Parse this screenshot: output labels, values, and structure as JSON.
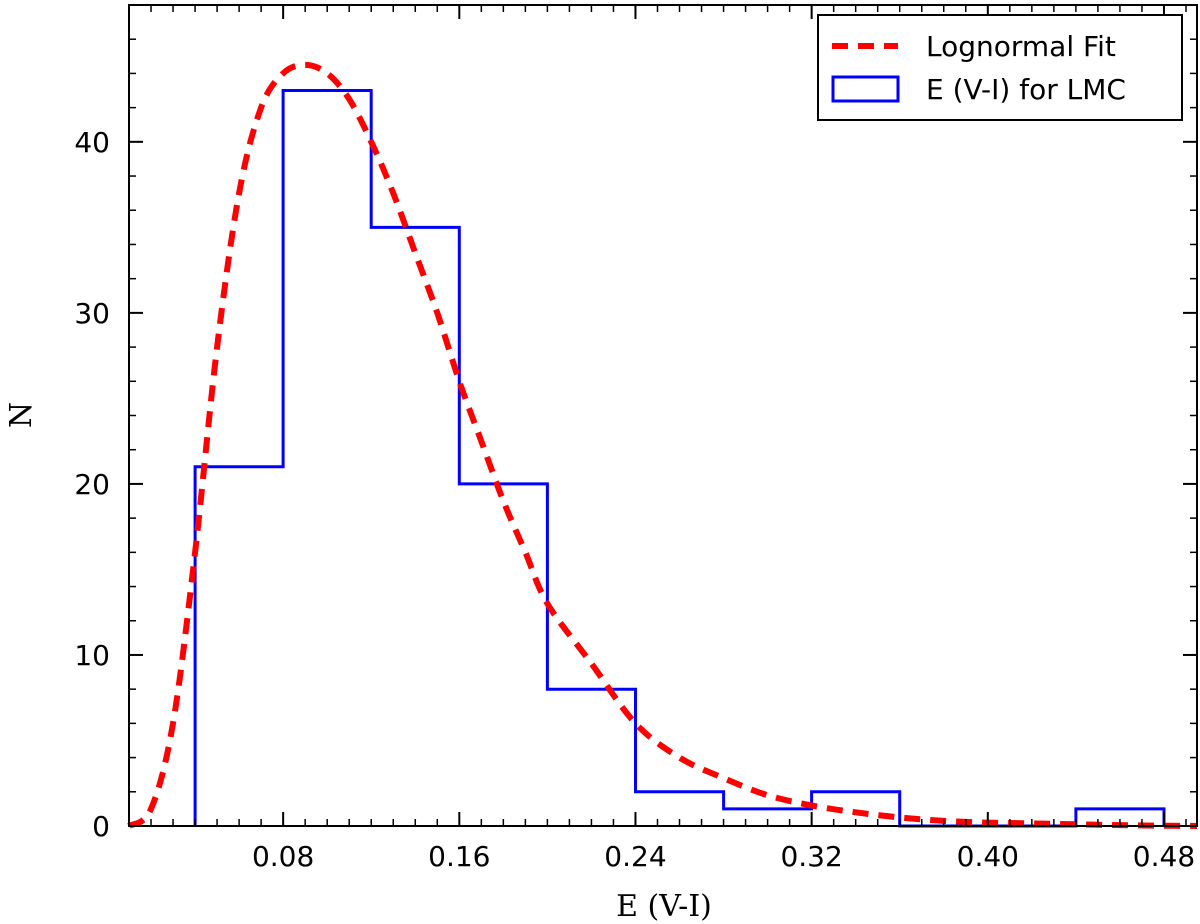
{
  "chart_data": {
    "type": "bar",
    "xlabel": "E (V-I)",
    "ylabel": "N",
    "xlim": [
      0.01,
      0.495
    ],
    "ylim": [
      0,
      48
    ],
    "x_ticks": [
      0.08,
      0.16,
      0.24,
      0.32,
      0.4,
      0.48
    ],
    "x_tick_labels": [
      "0.08",
      "0.16",
      "0.24",
      "0.32",
      "0.40",
      "0.48"
    ],
    "y_ticks": [
      0,
      10,
      20,
      30,
      40
    ],
    "y_tick_labels": [
      "0",
      "10",
      "20",
      "30",
      "40"
    ],
    "grid": false,
    "legend_position": "top-right",
    "series": [
      {
        "name": "Lognormal Fit",
        "kind": "line",
        "style": "dashed",
        "color": "#ff0000",
        "x": [
          0.01,
          0.02,
          0.03,
          0.04,
          0.05,
          0.06,
          0.07,
          0.08,
          0.09,
          0.1,
          0.11,
          0.12,
          0.13,
          0.14,
          0.15,
          0.16,
          0.17,
          0.18,
          0.19,
          0.2,
          0.22,
          0.24,
          0.26,
          0.28,
          0.3,
          0.32,
          0.34,
          0.36,
          0.38,
          0.4,
          0.42,
          0.44,
          0.46,
          0.48,
          0.495
        ],
        "y": [
          0,
          1,
          6,
          16,
          28,
          37,
          42,
          44,
          44.5,
          44,
          42.5,
          40,
          37,
          33.5,
          30,
          26,
          22.5,
          19,
          16,
          13,
          9.5,
          6,
          4,
          2.8,
          1.8,
          1.2,
          0.8,
          0.5,
          0.3,
          0.2,
          0.15,
          0.1,
          0.05,
          0.02,
          0
        ]
      },
      {
        "name": "E (V-I) for LMC",
        "kind": "step-histogram",
        "color": "#0000ff",
        "bin_edges": [
          0.04,
          0.08,
          0.12,
          0.16,
          0.2,
          0.24,
          0.28,
          0.32,
          0.36,
          0.4,
          0.44,
          0.48
        ],
        "counts": [
          21,
          43,
          35,
          20,
          8,
          2,
          1,
          2,
          0,
          0,
          1
        ]
      }
    ]
  }
}
